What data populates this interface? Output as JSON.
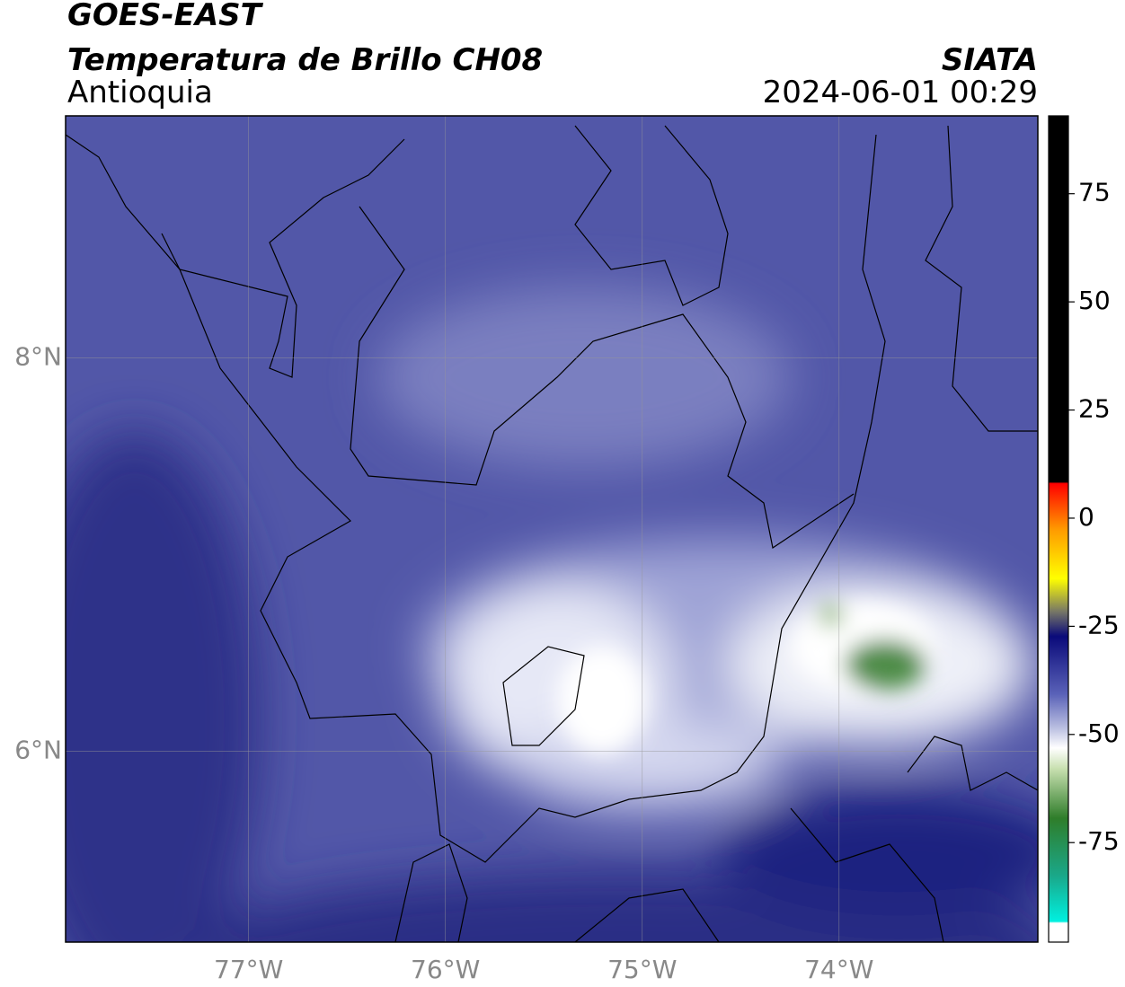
{
  "chart_data": {
    "type": "map",
    "title": "GOES-EAST",
    "subtitle": "Temperatura de Brillo CH08",
    "region": "Antioquia",
    "source": "SIATA",
    "datetime": "2024-06-01 00:29",
    "xlim": [
      -77.93,
      -72.99
    ],
    "ylim": [
      5.03,
      9.23
    ],
    "xticks": [
      {
        "value": -77,
        "label": "77°W"
      },
      {
        "value": -76,
        "label": "76°W"
      },
      {
        "value": -75,
        "label": "75°W"
      },
      {
        "value": -74,
        "label": "74°W"
      }
    ],
    "yticks": [
      {
        "value": 6,
        "label": "6°N"
      },
      {
        "value": 8,
        "label": "8°N"
      }
    ],
    "grid": true,
    "clim": [
      -98,
      93
    ],
    "cticks": [
      75,
      50,
      25,
      0,
      -25,
      -50,
      -75
    ]
  }
}
